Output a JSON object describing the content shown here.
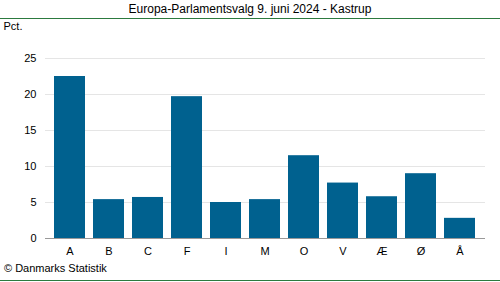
{
  "chart_data": {
    "type": "bar",
    "title": "Europa-Parlamentsvalg 9. juni 2024 - Kastrup",
    "ylabel": "Pct.",
    "caption": "© Danmarks Statistik",
    "categories": [
      "A",
      "B",
      "C",
      "F",
      "I",
      "M",
      "O",
      "V",
      "Æ",
      "Ø",
      "Å"
    ],
    "values": [
      22.5,
      5.4,
      5.7,
      19.7,
      5.0,
      5.4,
      11.5,
      7.7,
      5.8,
      9.0,
      2.8
    ],
    "color": "#00618f",
    "ylim": [
      0,
      25
    ],
    "yticks": [
      0,
      5,
      10,
      15,
      20,
      25
    ],
    "grid": true
  }
}
